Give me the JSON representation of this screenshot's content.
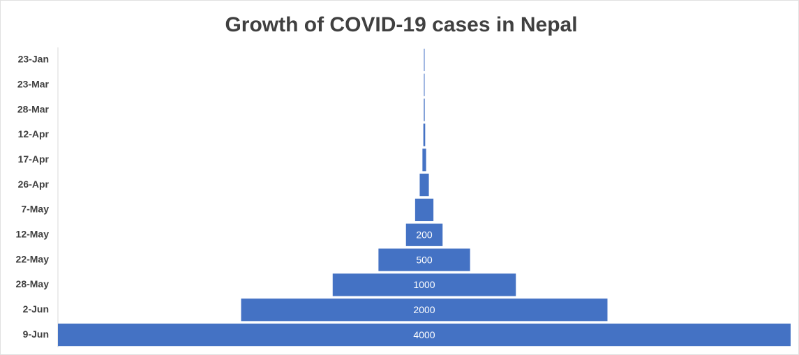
{
  "chart_data": {
    "type": "funnel",
    "title": "Growth of COVID-19 cases in Nepal",
    "categories": [
      "23-Jan",
      "23-Mar",
      "28-Mar",
      "12-Apr",
      "17-Apr",
      "26-Apr",
      "7-May",
      "12-May",
      "22-May",
      "28-May",
      "2-Jun",
      "9-Jun"
    ],
    "values": [
      1,
      3,
      5,
      10,
      20,
      50,
      100,
      200,
      500,
      1000,
      2000,
      4000
    ],
    "color": "#4472c4"
  }
}
